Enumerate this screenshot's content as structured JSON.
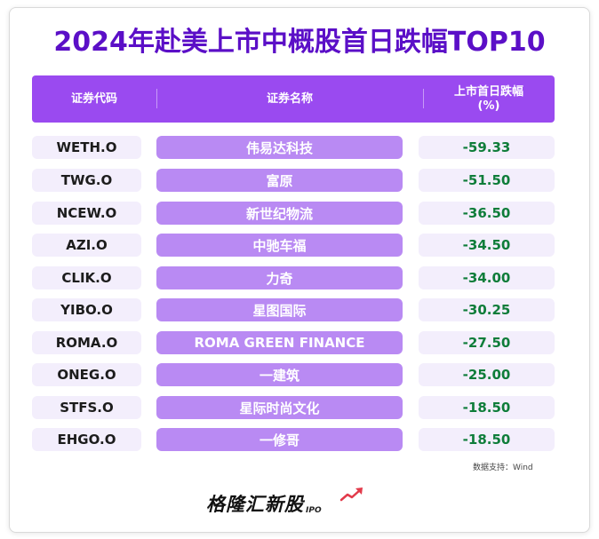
{
  "title": "2024年赴美上市中概股首日跌幅TOP10",
  "header": {
    "code": "证券代码",
    "name": "证券名称",
    "change": "上市首日跌幅\n(%)"
  },
  "rows": [
    {
      "code": "WETH.O",
      "name": "伟易达科技",
      "change": "-59.33"
    },
    {
      "code": "TWG.O",
      "name": "富原",
      "change": "-51.50"
    },
    {
      "code": "NCEW.O",
      "name": "新世纪物流",
      "change": "-36.50"
    },
    {
      "code": "AZI.O",
      "name": "中驰车福",
      "change": "-34.50"
    },
    {
      "code": "CLIK.O",
      "name": "力奇",
      "change": "-34.00"
    },
    {
      "code": "YIBO.O",
      "name": "星图国际",
      "change": "-30.25"
    },
    {
      "code": "ROMA.O",
      "name": "ROMA GREEN FINANCE",
      "change": "-27.50"
    },
    {
      "code": "ONEG.O",
      "name": "一建筑",
      "change": "-25.00"
    },
    {
      "code": "STFS.O",
      "name": "星际时尚文化",
      "change": "-18.50"
    },
    {
      "code": "EHGO.O",
      "name": "一修哥",
      "change": "-18.50"
    }
  ],
  "source": "数据支持：Wind",
  "logo": {
    "text": "格隆汇新股",
    "suffix": "IPO"
  },
  "colors": {
    "title": "#5b0fc7",
    "header_bg": "#9a4af0",
    "name_bg": "#b98af3",
    "cell_bg": "#f3eefc",
    "value": "#0f7d3a"
  }
}
